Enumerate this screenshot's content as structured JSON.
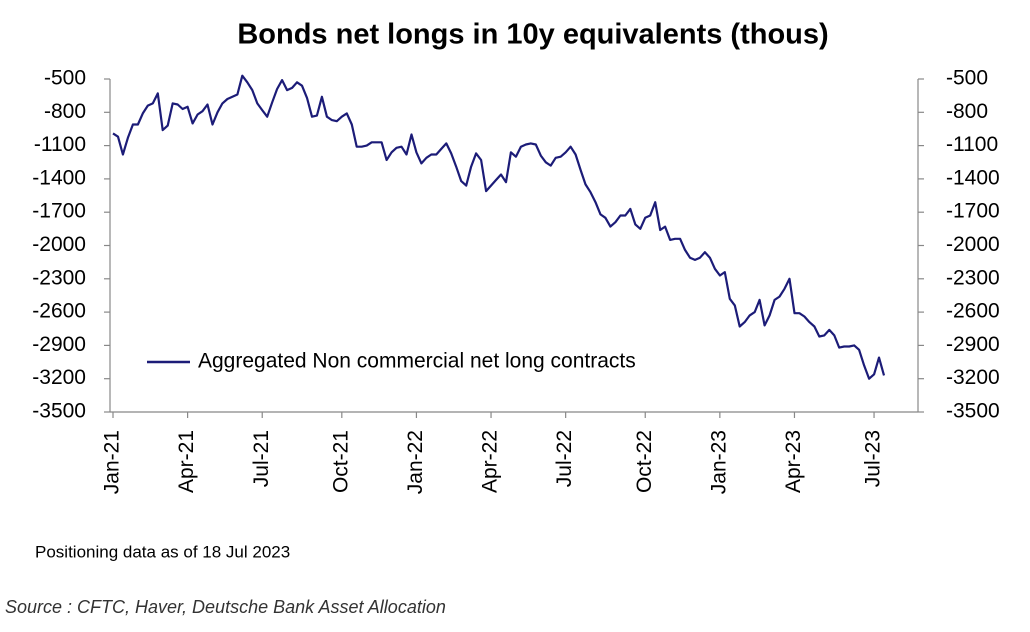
{
  "chart_data": {
    "type": "line",
    "title": "Bonds net longs in 10y equivalents (thous)",
    "note": "Positioning data as of 18 Jul 2023",
    "source": "Source : CFTC, Haver, Deutsche Bank Asset Allocation",
    "categories": [
      "Jan-21",
      null,
      null,
      null,
      null,
      null,
      null,
      null,
      null,
      null,
      null,
      null,
      null,
      null,
      null,
      "Apr-21",
      null,
      null,
      null,
      null,
      null,
      null,
      null,
      null,
      null,
      null,
      null,
      null,
      null,
      null,
      "Jul-21",
      null,
      null,
      null,
      null,
      null,
      null,
      null,
      null,
      null,
      null,
      null,
      null,
      null,
      null,
      null,
      "Oct-21",
      null,
      null,
      null,
      null,
      null,
      null,
      null,
      null,
      null,
      null,
      null,
      null,
      null,
      null,
      "Jan-22",
      null,
      null,
      null,
      null,
      null,
      null,
      null,
      null,
      null,
      null,
      null,
      null,
      null,
      null,
      "Apr-22",
      null,
      null,
      null,
      null,
      null,
      null,
      null,
      null,
      null,
      null,
      null,
      null,
      null,
      null,
      "Jul-22",
      null,
      null,
      null,
      null,
      null,
      null,
      null,
      null,
      null,
      null,
      null,
      null,
      null,
      null,
      null,
      "Oct-22",
      null,
      null,
      null,
      null,
      null,
      null,
      null,
      null,
      null,
      null,
      null,
      null,
      null,
      null,
      "Jan-23",
      null,
      null,
      null,
      null,
      null,
      null,
      null,
      null,
      null,
      null,
      null,
      null,
      null,
      null,
      "Apr-23",
      null,
      null,
      null,
      null,
      null,
      null,
      null,
      null,
      null,
      null,
      null,
      null,
      null,
      null,
      null,
      "Jul-23",
      null,
      null
    ],
    "series": [
      {
        "name": "Aggregated Non commercial net long contracts",
        "color": "#1c1c78",
        "values": [
          -990,
          -1020,
          -1180,
          -1030,
          -910,
          -910,
          -810,
          -740,
          -720,
          -630,
          -960,
          -920,
          -720,
          -730,
          -770,
          -750,
          -900,
          -820,
          -790,
          -730,
          -910,
          -800,
          -720,
          -680,
          -660,
          -640,
          -470,
          -530,
          -600,
          -720,
          -780,
          -840,
          -710,
          -590,
          -510,
          -600,
          -580,
          -530,
          -560,
          -670,
          -840,
          -830,
          -660,
          -840,
          -870,
          -880,
          -840,
          -810,
          -910,
          -1110,
          -1110,
          -1100,
          -1070,
          -1070,
          -1070,
          -1230,
          -1160,
          -1120,
          -1110,
          -1180,
          -1000,
          -1160,
          -1260,
          -1210,
          -1180,
          -1180,
          -1130,
          -1080,
          -1170,
          -1290,
          -1420,
          -1460,
          -1290,
          -1170,
          -1230,
          -1510,
          -1460,
          -1410,
          -1360,
          -1430,
          -1160,
          -1200,
          -1110,
          -1090,
          -1080,
          -1090,
          -1190,
          -1250,
          -1280,
          -1210,
          -1200,
          -1160,
          -1110,
          -1180,
          -1320,
          -1450,
          -1520,
          -1610,
          -1720,
          -1750,
          -1830,
          -1790,
          -1730,
          -1730,
          -1670,
          -1810,
          -1850,
          -1750,
          -1730,
          -1610,
          -1860,
          -1830,
          -1950,
          -1940,
          -1940,
          -2040,
          -2110,
          -2130,
          -2110,
          -2060,
          -2110,
          -2210,
          -2270,
          -2240,
          -2480,
          -2540,
          -2730,
          -2690,
          -2630,
          -2600,
          -2490,
          -2720,
          -2630,
          -2490,
          -2460,
          -2390,
          -2300,
          -2610,
          -2610,
          -2640,
          -2690,
          -2730,
          -2820,
          -2810,
          -2760,
          -2810,
          -2920,
          -2910,
          -2910,
          -2900,
          -2940,
          -3080,
          -3200,
          -3160,
          -3010,
          -3170
        ]
      }
    ],
    "ylim": [
      -500,
      -3500
    ],
    "yticks": [
      -500,
      -800,
      -1100,
      -1400,
      -1700,
      -2000,
      -2300,
      -2600,
      -2900,
      -3200,
      -3500
    ],
    "y2lim": [
      -500,
      -3500
    ],
    "y2ticks": [
      -500,
      -800,
      -1100,
      -1400,
      -1700,
      -2000,
      -2300,
      -2600,
      -2900,
      -3200,
      -3500
    ],
    "grid": false,
    "legend": "lower left"
  }
}
